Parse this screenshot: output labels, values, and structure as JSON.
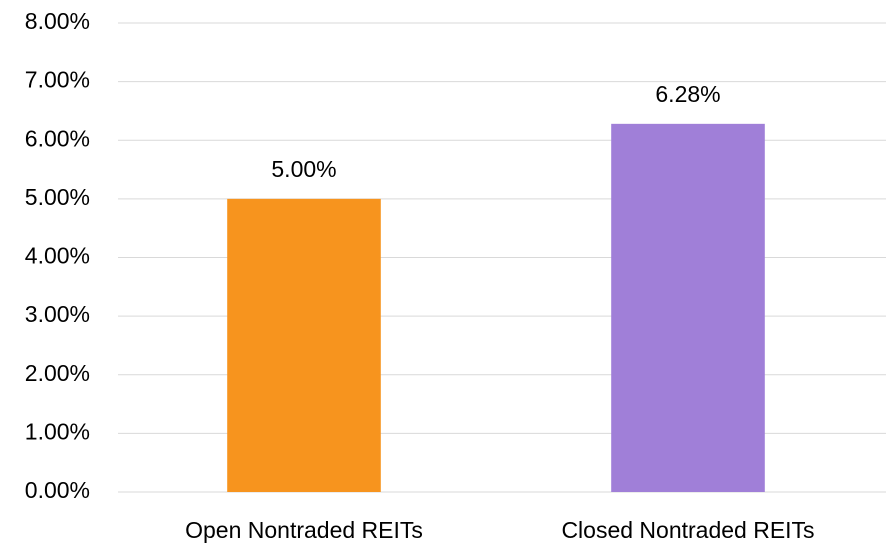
{
  "chart_data": {
    "type": "bar",
    "categories": [
      "Open Nontraded REITs",
      "Closed Nontraded REITs"
    ],
    "values": [
      5,
      6.28
    ],
    "value_labels": [
      "5.00%",
      "6.28%"
    ],
    "colors": [
      "#f7941e",
      "#a07fd8"
    ],
    "ylim": [
      0,
      8
    ],
    "yticks": [
      {
        "value": 0,
        "label": "0.00%"
      },
      {
        "value": 1,
        "label": "1.00%"
      },
      {
        "value": 2,
        "label": "2.00%"
      },
      {
        "value": 3,
        "label": "3.00%"
      },
      {
        "value": 4,
        "label": "4.00%"
      },
      {
        "value": 5,
        "label": "5.00%"
      },
      {
        "value": 6,
        "label": "6.00%"
      },
      {
        "value": 7,
        "label": "7.00%"
      },
      {
        "value": 8,
        "label": "8.00%"
      }
    ],
    "grid": true
  }
}
